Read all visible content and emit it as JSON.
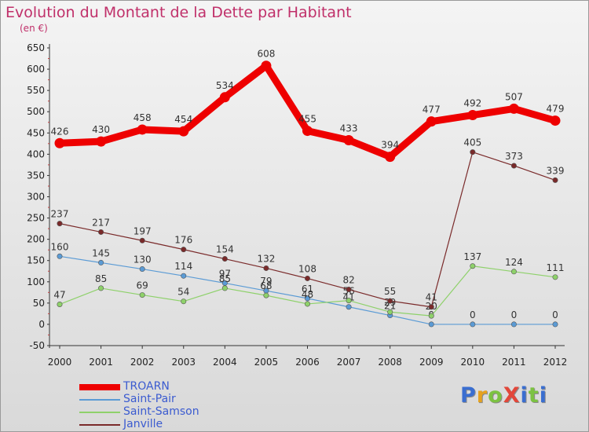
{
  "title": "Evolution du Montant de la Dette par Habitant",
  "subtitle": "(en €)",
  "logo": {
    "text": "ProXiti",
    "letter_colors": [
      "#3a6ed0",
      "#e6a21f",
      "#7cc242",
      "#e2473a",
      "#3a6ed0",
      "#7cc242",
      "#3a6ed0"
    ]
  },
  "chart_data": {
    "type": "line",
    "x": [
      "2000",
      "2001",
      "2002",
      "2003",
      "2004",
      "2005",
      "2006",
      "2007",
      "2008",
      "2009",
      "2010",
      "2011",
      "2012"
    ],
    "ylim": [
      -50,
      650
    ],
    "yticks": [
      -50,
      0,
      50,
      100,
      150,
      200,
      250,
      300,
      350,
      400,
      450,
      500,
      550,
      600,
      650
    ],
    "grid": false,
    "legend": "bottom-left",
    "series": [
      {
        "name": "TROARN",
        "color": "#ee0000",
        "emphasis": true,
        "values": [
          426,
          430,
          458,
          454,
          534,
          608,
          455,
          433,
          394,
          477,
          492,
          507,
          479
        ],
        "labels": [
          "426",
          "430",
          "458",
          "454",
          "534",
          "608",
          "455",
          "433",
          "394",
          "477",
          "492",
          "507",
          "479"
        ]
      },
      {
        "name": "Saint-Pair",
        "color": "#5b9bd5",
        "emphasis": false,
        "values": [
          160,
          145,
          130,
          114,
          97,
          79,
          61,
          41,
          21,
          0,
          0,
          0,
          0
        ],
        "labels": [
          "160",
          "145",
          "130",
          "114",
          "97",
          "79",
          "61",
          "41",
          "21",
          "0",
          "0",
          "0",
          "0"
        ]
      },
      {
        "name": "Saint-Samson",
        "color": "#8ed16a",
        "emphasis": false,
        "values": [
          47,
          85,
          69,
          54,
          85,
          68,
          48,
          56,
          29,
          20,
          137,
          124,
          111
        ],
        "labels": [
          "47",
          "85",
          "69",
          "54",
          "85",
          "68",
          "48",
          "56",
          "29",
          "20",
          "137",
          "124",
          "111"
        ]
      },
      {
        "name": "Janville",
        "color": "#7a2a2a",
        "emphasis": false,
        "values": [
          237,
          217,
          197,
          176,
          154,
          132,
          108,
          82,
          55,
          41,
          405,
          373,
          339
        ],
        "labels": [
          "237",
          "217",
          "197",
          "176",
          "154",
          "132",
          "108",
          "82",
          "55",
          "41",
          "405",
          "373",
          "339"
        ]
      }
    ]
  }
}
